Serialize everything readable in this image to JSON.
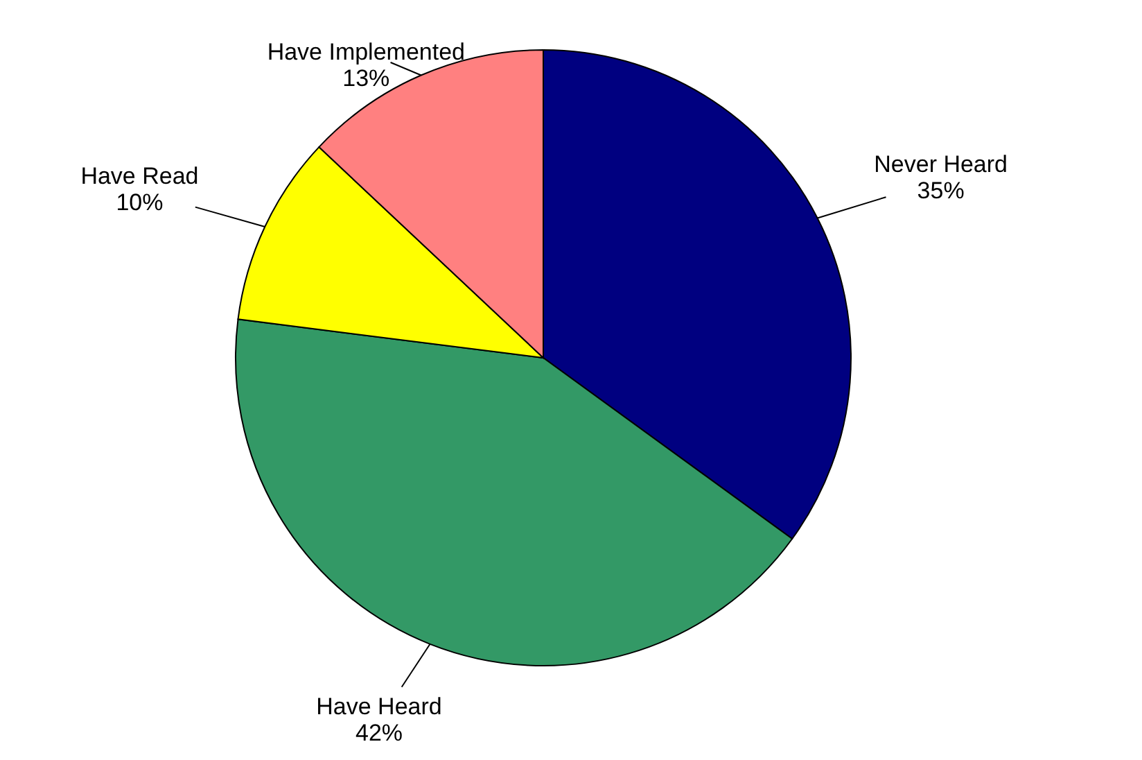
{
  "chart_data": {
    "type": "pie",
    "categories": [
      "Never Heard",
      "Have Heard",
      "Have Read",
      "Have Implemented"
    ],
    "values": [
      35,
      42,
      10,
      13
    ],
    "value_labels": [
      "35%",
      "42%",
      "10%",
      "13%"
    ],
    "colors": [
      "#000080",
      "#339966",
      "#ffff00",
      "#ff8080"
    ]
  }
}
